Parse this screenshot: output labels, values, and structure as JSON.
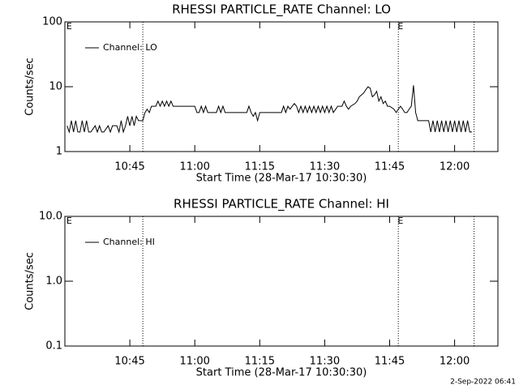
{
  "chart_data": [
    {
      "type": "line",
      "title": "RHESSI PARTICLE_RATE Channel: LO",
      "x_label": "Start Time (28-Mar-17 10:30:30)",
      "y_label": "Counts/sec",
      "log_y": true,
      "xlim": [
        630,
        730
      ],
      "ylim": [
        1,
        100
      ],
      "xticks": [
        {
          "value": 645,
          "label": "10:45"
        },
        {
          "value": 660,
          "label": "11:00"
        },
        {
          "value": 675,
          "label": "11:15"
        },
        {
          "value": 690,
          "label": "11:30"
        },
        {
          "value": 705,
          "label": "11:45"
        },
        {
          "value": 720,
          "label": "12:00"
        }
      ],
      "yticks": [
        1,
        10,
        100
      ],
      "vlines": [
        648,
        707,
        724.5
      ],
      "annotations": [
        {
          "text": "E",
          "x": 631
        },
        {
          "text": "E",
          "x": 707.5
        }
      ],
      "x": [
        630.5,
        631,
        631.5,
        632,
        632.5,
        633,
        633.5,
        634,
        634.5,
        635,
        635.5,
        636,
        637,
        637.5,
        638,
        638.5,
        639,
        640,
        640.5,
        641,
        642,
        642.5,
        643,
        643.5,
        644,
        644.5,
        645,
        645.5,
        646,
        646.5,
        647,
        648,
        648.5,
        649,
        649.5,
        650,
        651,
        651.5,
        652,
        652.5,
        653,
        653.5,
        654,
        654.5,
        655,
        656,
        658,
        659,
        660,
        660.5,
        661,
        661.5,
        662,
        662.5,
        663,
        665,
        665.5,
        666,
        666.5,
        667,
        672,
        672.5,
        673,
        673.5,
        674,
        674.5,
        675,
        680,
        680.5,
        681,
        681.5,
        682,
        682.5,
        683,
        683.5,
        684,
        684.5,
        685,
        685.5,
        686,
        686.5,
        687,
        687.5,
        688,
        688.5,
        689,
        689.5,
        690,
        690.5,
        691,
        691.5,
        692,
        693,
        694,
        694.5,
        695,
        695.5,
        696,
        697,
        697.5,
        698,
        699,
        699.5,
        700,
        700.5,
        701,
        701.5,
        702,
        702.5,
        703,
        703.5,
        704,
        704.5,
        705,
        706,
        706.5,
        707,
        707.5,
        708,
        708.5,
        709,
        709.5,
        710,
        710.5,
        711,
        711.5,
        713,
        714,
        714.5,
        715,
        715.5,
        716,
        716.5,
        717,
        717.5,
        718,
        718.5,
        719,
        719.5,
        720,
        720.5,
        721,
        721.5,
        722,
        722.5,
        723,
        723.5,
        724
      ],
      "series": [
        {
          "name": "Channel: LO",
          "color": "#000000",
          "values": [
            2.5,
            2,
            3,
            2,
            3,
            2,
            2,
            3,
            2,
            3,
            2,
            2,
            2.5,
            2,
            2.5,
            2,
            2,
            2.5,
            2,
            2.5,
            2.5,
            2,
            3,
            2,
            2.5,
            3.5,
            2.5,
            3.5,
            2.5,
            3.5,
            3,
            3,
            4,
            4.5,
            4,
            5,
            5,
            6,
            5,
            6,
            5,
            6,
            5,
            6,
            5,
            5,
            5,
            5,
            5,
            4,
            4,
            5,
            4,
            5,
            4,
            4,
            5,
            4,
            5,
            4,
            4,
            5,
            4,
            3.5,
            4,
            3,
            4,
            4,
            5,
            4,
            5,
            4.5,
            5,
            5.5,
            5,
            4,
            5,
            4,
            5,
            4,
            5,
            4,
            5,
            4,
            5,
            4,
            5,
            4,
            5,
            4,
            5,
            4,
            5,
            5,
            6,
            5,
            4.5,
            5,
            5.5,
            6,
            7,
            8,
            9,
            10,
            9.5,
            7,
            7.5,
            8.5,
            6,
            7,
            5.5,
            6,
            5,
            5,
            4.5,
            4,
            4.5,
            5,
            4.5,
            4,
            4,
            4.5,
            5,
            10.5,
            4,
            3,
            3,
            3,
            2,
            3,
            2,
            3,
            2,
            3,
            2,
            3,
            2,
            3,
            2,
            3,
            2,
            3,
            2,
            3,
            2,
            3,
            2,
            2
          ]
        }
      ]
    },
    {
      "type": "line",
      "title": "RHESSI PARTICLE_RATE Channel: HI",
      "x_label": "Start Time (28-Mar-17 10:30:30)",
      "y_label": "Counts/sec",
      "log_y": true,
      "xlim": [
        630,
        730
      ],
      "ylim": [
        0.1,
        10
      ],
      "xticks": [
        {
          "value": 645,
          "label": "10:45"
        },
        {
          "value": 660,
          "label": "11:00"
        },
        {
          "value": 675,
          "label": "11:15"
        },
        {
          "value": 690,
          "label": "11:30"
        },
        {
          "value": 705,
          "label": "11:45"
        },
        {
          "value": 720,
          "label": "12:00"
        }
      ],
      "yticks": [
        0.1,
        {
          "value": 1,
          "label": "1.0"
        },
        {
          "value": 10,
          "label": "10.0"
        }
      ],
      "vlines": [
        648,
        707,
        724.5
      ],
      "annotations": [
        {
          "text": "E",
          "x": 631
        },
        {
          "text": "E",
          "x": 707.5
        }
      ],
      "x": [],
      "series": [
        {
          "name": "Channel: HI",
          "color": "#000000",
          "values": []
        }
      ]
    }
  ],
  "footer": "2-Sep-2022 06:41"
}
